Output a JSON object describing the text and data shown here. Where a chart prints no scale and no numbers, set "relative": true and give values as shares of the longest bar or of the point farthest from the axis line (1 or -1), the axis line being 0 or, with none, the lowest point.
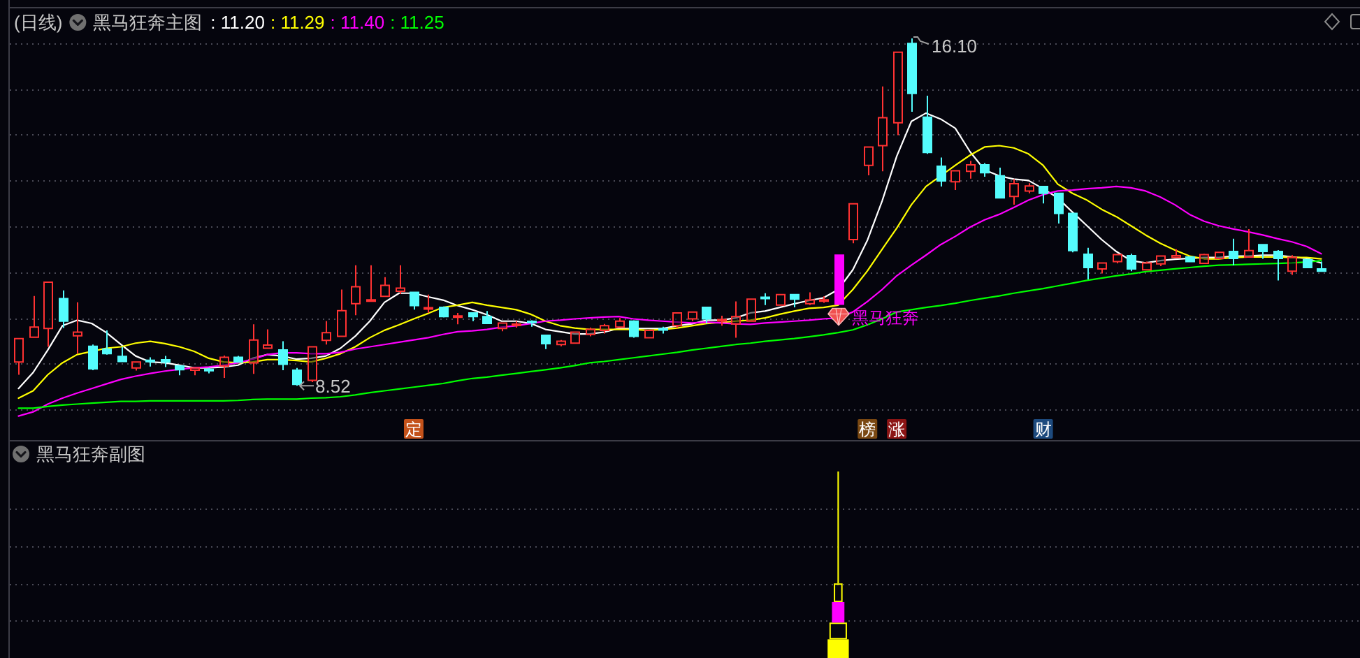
{
  "chart_data": [
    {
      "type": "candlestick",
      "title": "(日线)",
      "subtitle": "黑马狂奔主图",
      "annotations": [
        ": 11.20",
        ": 11.29",
        ": 11.40",
        ": 11.25"
      ],
      "categories": [
        null,
        null,
        null,
        null,
        null,
        null,
        null,
        null,
        null,
        null,
        null,
        null,
        null,
        null,
        null,
        null,
        null,
        null,
        null,
        null,
        null,
        null,
        null,
        null,
        null,
        null,
        null,
        "定",
        null,
        null,
        null,
        null,
        null,
        null,
        null,
        null,
        null,
        null,
        null,
        null,
        null,
        null,
        null,
        null,
        null,
        null,
        null,
        null,
        null,
        null,
        null,
        null,
        null,
        null,
        null,
        null,
        null,
        null,
        "榜",
        null,
        "涨",
        null,
        null,
        null,
        null,
        null,
        null,
        null,
        null,
        null,
        "财",
        null,
        null,
        null,
        null,
        null,
        null,
        null,
        null,
        null,
        null,
        null,
        null,
        null,
        null,
        null,
        null,
        null,
        null,
        null
      ],
      "ylim": [
        7.32,
        16.77
      ],
      "yticks": [
        {
          "value": 8,
          "label": null
        },
        {
          "value": 9,
          "label": null
        },
        {
          "value": 10,
          "label": null
        },
        {
          "value": 11,
          "label": null
        },
        {
          "value": 12,
          "label": null
        },
        {
          "value": 13,
          "label": null
        },
        {
          "value": 14,
          "label": null
        },
        {
          "value": 15,
          "label": null
        },
        {
          "value": 16,
          "label": null
        }
      ],
      "grid": "y",
      "tick_labels": "x",
      "color": "#ff3232",
      "ohlc": [
        [
          9.04,
          9.55,
          8.76,
          9.55
        ],
        [
          9.58,
          10.48,
          9.58,
          9.8
        ],
        [
          9.77,
          10.78,
          9.37,
          10.78
        ],
        [
          10.42,
          10.6,
          9.78,
          9.93
        ],
        [
          9.61,
          10.34,
          9.22,
          9.69
        ],
        [
          9.38,
          9.42,
          8.86,
          8.89
        ],
        [
          9.32,
          9.73,
          9.2,
          9.22
        ],
        [
          9.16,
          9.37,
          9.04,
          9.05
        ],
        [
          8.91,
          9.04,
          8.85,
          9.04
        ],
        [
          9.07,
          9.14,
          8.94,
          9.05
        ],
        [
          9.09,
          9.17,
          8.93,
          9.04
        ],
        [
          8.95,
          8.95,
          8.75,
          8.87
        ],
        [
          8.86,
          8.92,
          8.75,
          8.91
        ],
        [
          8.87,
          8.91,
          8.79,
          8.86
        ],
        [
          8.95,
          9.18,
          8.69,
          9.14
        ],
        [
          9.14,
          9.17,
          9.03,
          9.04
        ],
        [
          9.02,
          9.86,
          8.78,
          9.52
        ],
        [
          9.34,
          9.75,
          9.34,
          9.41
        ],
        [
          9.3,
          9.49,
          8.86,
          8.99
        ],
        [
          8.86,
          8.91,
          8.52,
          8.55
        ],
        [
          8.64,
          9.37,
          8.6,
          9.37
        ],
        [
          9.51,
          9.93,
          9.42,
          9.68
        ],
        [
          9.6,
          10.62,
          9.6,
          10.16
        ],
        [
          10.31,
          11.15,
          10.06,
          10.68
        ],
        [
          10.37,
          11.15,
          10.37,
          10.39
        ],
        [
          10.47,
          10.89,
          10.47,
          10.71
        ],
        [
          10.58,
          11.15,
          10.52,
          10.65
        ],
        [
          10.56,
          10.56,
          10.18,
          10.27
        ],
        [
          10.2,
          10.51,
          10.11,
          10.22
        ],
        [
          10.23,
          10.25,
          10.01,
          10.03
        ],
        [
          10.02,
          10.11,
          9.86,
          10.04
        ],
        [
          10.11,
          10.11,
          9.93,
          10.03
        ],
        [
          10.03,
          10.15,
          9.87,
          9.88
        ],
        [
          9.77,
          9.89,
          9.71,
          9.89
        ],
        [
          9.84,
          9.93,
          9.79,
          9.86
        ],
        [
          9.92,
          9.95,
          9.81,
          9.9
        ],
        [
          9.62,
          9.62,
          9.32,
          9.44
        ],
        [
          9.42,
          9.52,
          9.38,
          9.49
        ],
        [
          9.45,
          9.69,
          9.45,
          9.69
        ],
        [
          9.64,
          9.79,
          9.6,
          9.75
        ],
        [
          9.73,
          9.87,
          9.66,
          9.83
        ],
        [
          9.8,
          10.0,
          9.8,
          9.93
        ],
        [
          9.93,
          9.95,
          9.57,
          9.6
        ],
        [
          9.57,
          9.73,
          9.57,
          9.73
        ],
        [
          9.76,
          9.81,
          9.66,
          9.74
        ],
        [
          9.83,
          10.11,
          9.78,
          10.11
        ],
        [
          9.98,
          10.13,
          9.93,
          10.13
        ],
        [
          10.23,
          10.23,
          9.88,
          9.98
        ],
        [
          9.94,
          10.05,
          9.83,
          9.96
        ],
        [
          9.87,
          10.36,
          9.57,
          10.03
        ],
        [
          9.93,
          10.41,
          9.93,
          10.41
        ],
        [
          10.44,
          10.54,
          10.28,
          10.43
        ],
        [
          10.28,
          10.51,
          10.28,
          10.51
        ],
        [
          10.51,
          10.51,
          10.23,
          10.41
        ],
        [
          10.31,
          10.56,
          10.28,
          10.39
        ],
        [
          10.37,
          10.47,
          10.33,
          10.39
        ],
        [
          10.3,
          11.37,
          10.3,
          11.37
        ],
        [
          11.71,
          12.49,
          11.63,
          12.49
        ],
        [
          13.33,
          13.73,
          13.11,
          13.73
        ],
        [
          13.76,
          15.05,
          13.2,
          14.37
        ],
        [
          14.26,
          15.8,
          13.99,
          15.8
        ],
        [
          15.99,
          16.1,
          14.5,
          14.9
        ],
        [
          14.38,
          14.85,
          13.58,
          13.61
        ],
        [
          13.31,
          13.5,
          12.87,
          12.99
        ],
        [
          12.97,
          13.21,
          12.79,
          13.21
        ],
        [
          13.2,
          13.43,
          13.04,
          13.34
        ],
        [
          13.34,
          13.38,
          13.08,
          13.17
        ],
        [
          13.1,
          13.28,
          12.62,
          12.62
        ],
        [
          12.65,
          13.03,
          12.47,
          12.93
        ],
        [
          12.77,
          12.94,
          12.72,
          12.88
        ],
        [
          12.87,
          12.87,
          12.5,
          12.72
        ],
        [
          12.72,
          12.72,
          12.06,
          12.28
        ],
        [
          12.28,
          12.28,
          11.43,
          11.47
        ],
        [
          11.39,
          11.53,
          10.84,
          11.1
        ],
        [
          11.07,
          11.2,
          10.97,
          11.2
        ],
        [
          11.23,
          11.38,
          11.19,
          11.38
        ],
        [
          11.36,
          11.4,
          11.02,
          11.07
        ],
        [
          11.05,
          11.23,
          11.05,
          11.2
        ],
        [
          11.18,
          11.35,
          11.13,
          11.35
        ],
        [
          11.32,
          11.5,
          11.32,
          11.36
        ],
        [
          11.33,
          11.33,
          11.23,
          11.23
        ],
        [
          11.19,
          11.4,
          11.19,
          11.38
        ],
        [
          11.3,
          11.43,
          11.28,
          11.43
        ],
        [
          11.45,
          11.73,
          11.15,
          11.3
        ],
        [
          11.33,
          11.94,
          11.33,
          11.47
        ],
        [
          11.6,
          11.6,
          11.29,
          11.45
        ],
        [
          11.45,
          11.48,
          10.82,
          11.3
        ],
        [
          11.02,
          11.37,
          10.94,
          11.32
        ],
        [
          11.27,
          11.27,
          11.1,
          11.1
        ],
        [
          11.07,
          11.23,
          11.02,
          11.02
        ]
      ],
      "colors": [
        "#ff3232",
        "#ff3232",
        "#ff3232",
        "#54fcfc",
        "#ff3232",
        "#54fcfc",
        "#54fcfc",
        "#54fcfc",
        "#ff3232",
        "#54fcfc",
        "#54fcfc",
        "#54fcfc",
        "#ff3232",
        "#54fcfc",
        "#ff3232",
        "#54fcfc",
        "#ff3232",
        "#ff3232",
        "#54fcfc",
        "#54fcfc",
        "#ff3232",
        "#ff3232",
        "#ff3232",
        "#ff3232",
        "#ff3232",
        "#ff3232",
        "#ff3232",
        "#54fcfc",
        "#ff3232",
        "#54fcfc",
        "#ff3232",
        "#54fcfc",
        "#54fcfc",
        "#ff3232",
        "#ff3232",
        "#54fcfc",
        "#54fcfc",
        "#ff3232",
        "#ff3232",
        "#ff3232",
        "#ff3232",
        "#ff3232",
        "#54fcfc",
        "#ff3232",
        "#54fcfc",
        "#ff3232",
        "#ff3232",
        "#54fcfc",
        "#ff3232",
        "#ff3232",
        "#ff3232",
        "#54fcfc",
        "#ff3232",
        "#54fcfc",
        "#ff3232",
        "#ff3232",
        "#ff00ff",
        "#ff3232",
        "#ff3232",
        "#ff3232",
        "#ff3232",
        "#54fcfc",
        "#54fcfc",
        "#54fcfc",
        "#ff3232",
        "#ff3232",
        "#54fcfc",
        "#54fcfc",
        "#ff3232",
        "#ff3232",
        "#54fcfc",
        "#54fcfc",
        "#54fcfc",
        "#54fcfc",
        "#ff3232",
        "#ff3232",
        "#54fcfc",
        "#ff3232",
        "#ff3232",
        "#ff3232",
        "#54fcfc",
        "#ff3232",
        "#ff3232",
        "#54fcfc",
        "#ff3232",
        "#54fcfc",
        "#54fcfc",
        "#ff3232",
        "#54fcfc",
        "#54fcfc"
      ],
      "value_labels": [
        null,
        null,
        null,
        null,
        null,
        null,
        null,
        null,
        null,
        null,
        null,
        null,
        null,
        null,
        null,
        null,
        null,
        null,
        null,
        "8.52",
        null,
        null,
        null,
        null,
        null,
        null,
        null,
        null,
        null,
        null,
        null,
        null,
        null,
        null,
        null,
        null,
        null,
        null,
        null,
        null,
        null,
        null,
        null,
        null,
        null,
        null,
        null,
        null,
        null,
        null,
        null,
        null,
        null,
        null,
        null,
        null,
        "黑马狂奔",
        null,
        null,
        null,
        null,
        "16.10",
        null,
        null,
        null,
        null,
        null,
        null,
        null,
        null,
        null,
        null,
        null,
        null,
        null,
        null,
        null,
        null,
        null,
        null,
        null,
        null,
        null,
        null,
        null,
        null,
        null,
        null,
        null,
        null
      ],
      "series": [
        {
          "type": "line",
          "color": "#ffffff",
          "values": [
            8.46,
            8.81,
            9.3,
            9.83,
            9.95,
            9.88,
            9.68,
            9.42,
            9.17,
            9.04,
            9.02,
            8.97,
            8.91,
            8.91,
            8.93,
            8.97,
            9.12,
            9.2,
            9.17,
            9.1,
            9.12,
            9.17,
            9.34,
            9.6,
            9.93,
            10.34,
            10.54,
            10.54,
            10.46,
            10.39,
            10.27,
            10.18,
            10.07,
            9.93,
            9.93,
            9.88,
            9.75,
            9.7,
            9.65,
            9.65,
            9.69,
            9.77,
            9.77,
            9.77,
            9.77,
            9.83,
            9.87,
            9.95,
            9.95,
            10.0,
            10.11,
            10.15,
            10.23,
            10.31,
            10.38,
            10.44,
            10.62,
            11.05,
            11.7,
            12.55,
            13.53,
            14.29,
            14.47,
            14.34,
            14.14,
            13.63,
            13.23,
            13.1,
            13.03,
            13.0,
            12.82,
            12.62,
            12.31,
            12.01,
            11.71,
            11.45,
            11.25,
            11.2,
            11.25,
            11.28,
            11.3,
            11.32,
            11.32,
            11.35,
            11.35,
            11.37,
            11.37,
            11.33,
            11.3,
            11.2
          ]
        },
        {
          "type": "line",
          "color": "#ffff00",
          "values": [
            8.25,
            8.41,
            8.76,
            9.02,
            9.2,
            9.27,
            9.34,
            9.37,
            9.45,
            9.49,
            9.44,
            9.37,
            9.27,
            9.12,
            9.04,
            9.02,
            9.04,
            9.09,
            9.09,
            9.07,
            9.04,
            9.12,
            9.22,
            9.37,
            9.57,
            9.73,
            9.85,
            9.98,
            10.1,
            10.23,
            10.28,
            10.34,
            10.28,
            10.23,
            10.18,
            10.08,
            9.93,
            9.83,
            9.78,
            9.75,
            9.75,
            9.75,
            9.75,
            9.73,
            9.75,
            9.78,
            9.83,
            9.88,
            9.9,
            9.93,
            9.95,
            10.0,
            10.08,
            10.15,
            10.21,
            10.23,
            10.28,
            10.62,
            11.03,
            11.5,
            11.96,
            12.47,
            12.87,
            13.1,
            13.33,
            13.55,
            13.73,
            13.76,
            13.71,
            13.58,
            13.33,
            12.92,
            12.72,
            12.57,
            12.37,
            12.21,
            12.01,
            11.81,
            11.63,
            11.48,
            11.35,
            11.29,
            11.29,
            11.32,
            11.33,
            11.33,
            11.33,
            11.32,
            11.32,
            11.29
          ]
        },
        {
          "type": "line",
          "color": "#ff00ff",
          "values": [
            7.86,
            7.95,
            8.12,
            8.25,
            8.36,
            8.46,
            8.56,
            8.66,
            8.73,
            8.79,
            8.84,
            8.88,
            8.91,
            8.93,
            8.97,
            9.02,
            9.1,
            9.2,
            9.24,
            9.24,
            9.22,
            9.22,
            9.25,
            9.32,
            9.37,
            9.42,
            9.47,
            9.52,
            9.57,
            9.64,
            9.7,
            9.72,
            9.75,
            9.8,
            9.83,
            9.88,
            9.93,
            9.95,
            9.98,
            10.0,
            10.02,
            10.03,
            9.98,
            9.95,
            9.93,
            9.91,
            9.89,
            9.91,
            9.89,
            9.87,
            9.86,
            9.89,
            9.91,
            9.93,
            9.95,
            9.98,
            10.0,
            10.13,
            10.36,
            10.62,
            10.92,
            11.15,
            11.37,
            11.6,
            11.78,
            11.98,
            12.14,
            12.26,
            12.41,
            12.57,
            12.69,
            12.77,
            12.79,
            12.82,
            12.84,
            12.87,
            12.84,
            12.77,
            12.64,
            12.47,
            12.26,
            12.11,
            12.01,
            11.94,
            11.88,
            11.81,
            11.73,
            11.66,
            11.56,
            11.4
          ]
        },
        {
          "type": "line",
          "color": "#00ff00",
          "values": [
            8.03,
            8.03,
            8.07,
            8.1,
            8.12,
            8.14,
            8.16,
            8.18,
            8.18,
            8.19,
            8.19,
            8.19,
            8.19,
            8.19,
            8.19,
            8.2,
            8.22,
            8.23,
            8.23,
            8.23,
            8.25,
            8.26,
            8.28,
            8.32,
            8.37,
            8.41,
            8.45,
            8.49,
            8.53,
            8.57,
            8.63,
            8.68,
            8.71,
            8.75,
            8.79,
            8.83,
            8.87,
            8.91,
            8.96,
            9.02,
            9.05,
            9.09,
            9.13,
            9.17,
            9.21,
            9.25,
            9.3,
            9.34,
            9.38,
            9.42,
            9.45,
            9.49,
            9.52,
            9.55,
            9.59,
            9.63,
            9.68,
            9.74,
            9.85,
            9.98,
            10.13,
            10.18,
            10.23,
            10.27,
            10.32,
            10.38,
            10.43,
            10.48,
            10.54,
            10.59,
            10.64,
            10.7,
            10.76,
            10.82,
            10.87,
            10.92,
            10.96,
            11.01,
            11.04,
            11.07,
            11.1,
            11.13,
            11.15,
            11.16,
            11.17,
            11.18,
            11.19,
            11.2,
            11.22,
            11.25
          ]
        }
      ]
    },
    {
      "type": "bar",
      "title": "黑马狂奔副图",
      "relative": true,
      "stacked": true,
      "grid": true,
      "tick_labels": false,
      "categories": [
        null,
        null,
        null,
        null,
        null,
        null,
        null,
        null,
        null,
        null,
        null,
        null,
        null,
        null,
        null,
        null,
        null,
        null,
        null,
        null,
        null,
        null,
        null,
        null,
        null,
        null,
        null,
        null,
        null,
        null,
        null,
        null,
        null,
        null,
        null,
        null,
        null,
        null,
        null,
        null,
        null,
        null,
        null,
        null,
        null,
        null,
        null,
        null,
        null,
        null,
        null,
        null,
        null,
        null,
        null,
        null,
        null,
        null,
        null,
        null,
        null,
        null,
        null,
        null,
        null,
        null,
        null,
        null,
        null,
        null,
        null,
        null,
        null,
        null,
        null,
        null,
        null,
        null,
        null,
        null,
        null,
        null,
        null,
        null,
        null,
        null,
        null,
        null,
        null,
        null
      ],
      "series": [
        {
          "color": "#ffff00",
          "values": [
            null,
            null,
            null,
            null,
            null,
            null,
            null,
            null,
            null,
            null,
            null,
            null,
            null,
            null,
            null,
            null,
            null,
            null,
            null,
            null,
            null,
            null,
            null,
            null,
            null,
            null,
            null,
            null,
            null,
            null,
            null,
            null,
            null,
            null,
            null,
            null,
            null,
            null,
            null,
            null,
            null,
            null,
            null,
            null,
            null,
            null,
            null,
            null,
            null,
            null,
            null,
            null,
            null,
            null,
            null,
            null,
            0.1,
            null,
            null,
            null,
            null,
            null,
            null,
            null,
            null,
            null,
            null,
            null,
            null,
            null,
            null,
            null,
            null,
            null,
            null,
            null,
            null,
            null,
            null,
            null,
            null,
            null,
            null,
            null,
            null,
            null,
            null,
            null,
            null,
            null
          ]
        },
        {
          "color": "#ffff00",
          "values": [
            null,
            null,
            null,
            null,
            null,
            null,
            null,
            null,
            null,
            null,
            null,
            null,
            null,
            null,
            null,
            null,
            null,
            null,
            null,
            null,
            null,
            null,
            null,
            null,
            null,
            null,
            null,
            null,
            null,
            null,
            null,
            null,
            null,
            null,
            null,
            null,
            null,
            null,
            null,
            null,
            null,
            null,
            null,
            null,
            null,
            null,
            null,
            null,
            null,
            null,
            null,
            null,
            null,
            null,
            null,
            null,
            0.09,
            null,
            null,
            null,
            null,
            null,
            null,
            null,
            null,
            null,
            null,
            null,
            null,
            null,
            null,
            null,
            null,
            null,
            null,
            null,
            null,
            null,
            null,
            null,
            null,
            null,
            null,
            null,
            null,
            null,
            null,
            null,
            null,
            null
          ]
        },
        {
          "color": "#ff00ff",
          "values": [
            null,
            null,
            null,
            null,
            null,
            null,
            null,
            null,
            null,
            null,
            null,
            null,
            null,
            null,
            null,
            null,
            null,
            null,
            null,
            null,
            null,
            null,
            null,
            null,
            null,
            null,
            null,
            null,
            null,
            null,
            null,
            null,
            null,
            null,
            null,
            null,
            null,
            null,
            null,
            null,
            null,
            null,
            null,
            null,
            null,
            null,
            null,
            null,
            null,
            null,
            null,
            null,
            null,
            null,
            null,
            null,
            0.11,
            null,
            null,
            null,
            null,
            null,
            null,
            null,
            null,
            null,
            null,
            null,
            null,
            null,
            null,
            null,
            null,
            null,
            null,
            null,
            null,
            null,
            null,
            null,
            null,
            null,
            null,
            null,
            null,
            null,
            null,
            null,
            null,
            null
          ]
        },
        {
          "color": "#ffff00",
          "values": [
            null,
            null,
            null,
            null,
            null,
            null,
            null,
            null,
            null,
            null,
            null,
            null,
            null,
            null,
            null,
            null,
            null,
            null,
            null,
            null,
            null,
            null,
            null,
            null,
            null,
            null,
            null,
            null,
            null,
            null,
            null,
            null,
            null,
            null,
            null,
            null,
            null,
            null,
            null,
            null,
            null,
            null,
            null,
            null,
            null,
            null,
            null,
            null,
            null,
            null,
            null,
            null,
            null,
            null,
            null,
            null,
            0.1,
            null,
            null,
            null,
            null,
            null,
            null,
            null,
            null,
            null,
            null,
            null,
            null,
            null,
            null,
            null,
            null,
            null,
            null,
            null,
            null,
            null,
            null,
            null,
            null,
            null,
            null,
            null,
            null,
            null,
            null,
            null,
            null,
            null
          ]
        },
        {
          "color": "#ffff00",
          "values": [
            null,
            null,
            null,
            null,
            null,
            null,
            null,
            null,
            null,
            null,
            null,
            null,
            null,
            null,
            null,
            null,
            null,
            null,
            null,
            null,
            null,
            null,
            null,
            null,
            null,
            null,
            null,
            null,
            null,
            null,
            null,
            null,
            null,
            null,
            null,
            null,
            null,
            null,
            null,
            null,
            null,
            null,
            null,
            null,
            null,
            null,
            null,
            null,
            null,
            null,
            null,
            null,
            null,
            null,
            null,
            null,
            0.6,
            null,
            null,
            null,
            null,
            null,
            null,
            null,
            null,
            null,
            null,
            null,
            null,
            null,
            null,
            null,
            null,
            null,
            null,
            null,
            null,
            null,
            null,
            null,
            null,
            null,
            null,
            null,
            null,
            null,
            null,
            null,
            null,
            null
          ]
        }
      ]
    }
  ]
}
